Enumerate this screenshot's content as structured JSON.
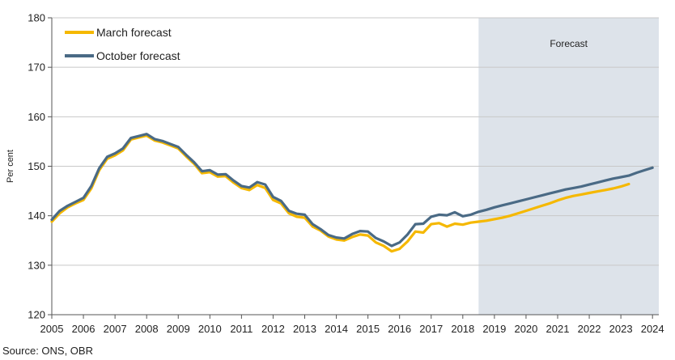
{
  "chart_data": {
    "type": "line",
    "title": "",
    "ylabel": "Per cent",
    "xlabel": "",
    "ylim": [
      120,
      180
    ],
    "yticks": [
      120,
      130,
      140,
      150,
      160,
      170,
      180
    ],
    "xlim": [
      2005,
      2024
    ],
    "xticks": [
      "2005",
      "2006",
      "2007",
      "2008",
      "2009",
      "2010",
      "2011",
      "2012",
      "2013",
      "2014",
      "2015",
      "2016",
      "2017",
      "2018",
      "2019",
      "2020",
      "2021",
      "2022",
      "2023",
      "2024"
    ],
    "grid": "horizontal",
    "legend_position": "top-left",
    "forecast_region": {
      "start": 2018.5,
      "end": 2024.2,
      "label": "Forecast",
      "color": "#dde3ea"
    },
    "source": "Source: ONS, OBR",
    "series": [
      {
        "name": "March forecast",
        "color": "#f5b800",
        "points": [
          [
            2005.0,
            138.8
          ],
          [
            2005.25,
            140.5
          ],
          [
            2005.5,
            141.7
          ],
          [
            2005.75,
            142.5
          ],
          [
            2006.0,
            143.2
          ],
          [
            2006.25,
            145.5
          ],
          [
            2006.5,
            149.2
          ],
          [
            2006.75,
            151.5
          ],
          [
            2007.0,
            152.2
          ],
          [
            2007.25,
            153.2
          ],
          [
            2007.5,
            155.4
          ],
          [
            2007.75,
            155.8
          ],
          [
            2008.0,
            156.2
          ],
          [
            2008.25,
            155.2
          ],
          [
            2008.5,
            154.8
          ],
          [
            2008.75,
            154.2
          ],
          [
            2009.0,
            153.6
          ],
          [
            2009.25,
            152.0
          ],
          [
            2009.5,
            150.5
          ],
          [
            2009.75,
            148.6
          ],
          [
            2010.0,
            148.8
          ],
          [
            2010.25,
            147.9
          ],
          [
            2010.5,
            148.0
          ],
          [
            2010.75,
            146.7
          ],
          [
            2011.0,
            145.6
          ],
          [
            2011.25,
            145.2
          ],
          [
            2011.5,
            146.2
          ],
          [
            2011.75,
            145.6
          ],
          [
            2012.0,
            143.2
          ],
          [
            2012.25,
            142.5
          ],
          [
            2012.5,
            140.5
          ],
          [
            2012.75,
            139.8
          ],
          [
            2013.0,
            139.6
          ],
          [
            2013.25,
            137.8
          ],
          [
            2013.5,
            137.0
          ],
          [
            2013.75,
            135.8
          ],
          [
            2014.0,
            135.2
          ],
          [
            2014.25,
            135.0
          ],
          [
            2014.5,
            135.7
          ],
          [
            2014.75,
            136.2
          ],
          [
            2015.0,
            136.0
          ],
          [
            2015.25,
            134.6
          ],
          [
            2015.5,
            133.9
          ],
          [
            2015.75,
            132.8
          ],
          [
            2016.0,
            133.3
          ],
          [
            2016.25,
            134.8
          ],
          [
            2016.5,
            136.8
          ],
          [
            2016.75,
            136.6
          ],
          [
            2017.0,
            138.3
          ],
          [
            2017.25,
            138.5
          ],
          [
            2017.5,
            137.8
          ],
          [
            2017.75,
            138.4
          ],
          [
            2018.0,
            138.2
          ],
          [
            2018.25,
            138.6
          ],
          [
            2018.5,
            138.8
          ],
          [
            2018.75,
            139.0
          ],
          [
            2019.0,
            139.3
          ],
          [
            2019.25,
            139.6
          ],
          [
            2019.5,
            140.0
          ],
          [
            2019.75,
            140.5
          ],
          [
            2020.0,
            141.0
          ],
          [
            2020.25,
            141.5
          ],
          [
            2020.5,
            142.0
          ],
          [
            2020.75,
            142.5
          ],
          [
            2021.0,
            143.1
          ],
          [
            2021.25,
            143.6
          ],
          [
            2021.5,
            144.0
          ],
          [
            2021.75,
            144.3
          ],
          [
            2022.0,
            144.6
          ],
          [
            2022.25,
            144.9
          ],
          [
            2022.5,
            145.2
          ],
          [
            2022.75,
            145.5
          ],
          [
            2023.0,
            145.9
          ],
          [
            2023.25,
            146.4
          ]
        ]
      },
      {
        "name": "October forecast",
        "color": "#4a6a85",
        "points": [
          [
            2005.0,
            139.2
          ],
          [
            2005.25,
            141.0
          ],
          [
            2005.5,
            142.0
          ],
          [
            2005.75,
            142.8
          ],
          [
            2006.0,
            143.6
          ],
          [
            2006.25,
            146.0
          ],
          [
            2006.5,
            149.6
          ],
          [
            2006.75,
            151.9
          ],
          [
            2007.0,
            152.6
          ],
          [
            2007.25,
            153.6
          ],
          [
            2007.5,
            155.7
          ],
          [
            2007.75,
            156.1
          ],
          [
            2008.0,
            156.5
          ],
          [
            2008.25,
            155.5
          ],
          [
            2008.5,
            155.1
          ],
          [
            2008.75,
            154.5
          ],
          [
            2009.0,
            153.9
          ],
          [
            2009.25,
            152.3
          ],
          [
            2009.5,
            150.8
          ],
          [
            2009.75,
            149.0
          ],
          [
            2010.0,
            149.2
          ],
          [
            2010.25,
            148.3
          ],
          [
            2010.5,
            148.4
          ],
          [
            2010.75,
            147.1
          ],
          [
            2011.0,
            146.0
          ],
          [
            2011.25,
            145.7
          ],
          [
            2011.5,
            146.8
          ],
          [
            2011.75,
            146.3
          ],
          [
            2012.0,
            143.8
          ],
          [
            2012.25,
            143.0
          ],
          [
            2012.5,
            141.0
          ],
          [
            2012.75,
            140.4
          ],
          [
            2013.0,
            140.2
          ],
          [
            2013.25,
            138.3
          ],
          [
            2013.5,
            137.3
          ],
          [
            2013.75,
            136.1
          ],
          [
            2014.0,
            135.6
          ],
          [
            2014.25,
            135.4
          ],
          [
            2014.5,
            136.3
          ],
          [
            2014.75,
            136.9
          ],
          [
            2015.0,
            136.8
          ],
          [
            2015.25,
            135.5
          ],
          [
            2015.5,
            134.8
          ],
          [
            2015.75,
            133.9
          ],
          [
            2016.0,
            134.6
          ],
          [
            2016.25,
            136.2
          ],
          [
            2016.5,
            138.3
          ],
          [
            2016.75,
            138.4
          ],
          [
            2017.0,
            139.8
          ],
          [
            2017.25,
            140.2
          ],
          [
            2017.5,
            140.1
          ],
          [
            2017.75,
            140.7
          ],
          [
            2018.0,
            139.9
          ],
          [
            2018.25,
            140.2
          ],
          [
            2018.5,
            140.8
          ],
          [
            2018.75,
            141.2
          ],
          [
            2019.0,
            141.7
          ],
          [
            2019.25,
            142.1
          ],
          [
            2019.5,
            142.5
          ],
          [
            2019.75,
            142.9
          ],
          [
            2020.0,
            143.3
          ],
          [
            2020.25,
            143.7
          ],
          [
            2020.5,
            144.1
          ],
          [
            2020.75,
            144.5
          ],
          [
            2021.0,
            144.9
          ],
          [
            2021.25,
            145.3
          ],
          [
            2021.5,
            145.6
          ],
          [
            2021.75,
            145.9
          ],
          [
            2022.0,
            146.3
          ],
          [
            2022.25,
            146.7
          ],
          [
            2022.5,
            147.1
          ],
          [
            2022.75,
            147.5
          ],
          [
            2023.0,
            147.8
          ],
          [
            2023.25,
            148.1
          ],
          [
            2023.5,
            148.7
          ],
          [
            2023.75,
            149.2
          ],
          [
            2024.0,
            149.7
          ]
        ]
      }
    ]
  }
}
